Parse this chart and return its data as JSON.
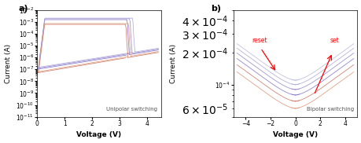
{
  "fig_width": 4.6,
  "fig_height": 1.82,
  "dpi": 100,
  "panel_a": {
    "label": "a)",
    "xlabel": "Voltage (V)",
    "ylabel": "Current (A)",
    "xlim": [
      0,
      4.5
    ],
    "ylim": [
      1e-11,
      0.01
    ],
    "annotation": "Unipolar switching",
    "colors": [
      "#8877cc",
      "#9988cc",
      "#aaaadd",
      "#cc7766",
      "#dd9977"
    ]
  },
  "panel_b": {
    "label": "b)",
    "xlabel": "Voltage (V)",
    "ylabel": "Current (A)",
    "xlim": [
      -5.0,
      5.0
    ],
    "ylim": [
      5e-05,
      0.0005
    ],
    "annotation": "Bipolar switching",
    "reset_label": "reset",
    "set_label": "set",
    "colors": [
      "#8877cc",
      "#9988cc",
      "#aaaadd",
      "#bbbbdd",
      "#cc7766",
      "#dd9977"
    ]
  }
}
